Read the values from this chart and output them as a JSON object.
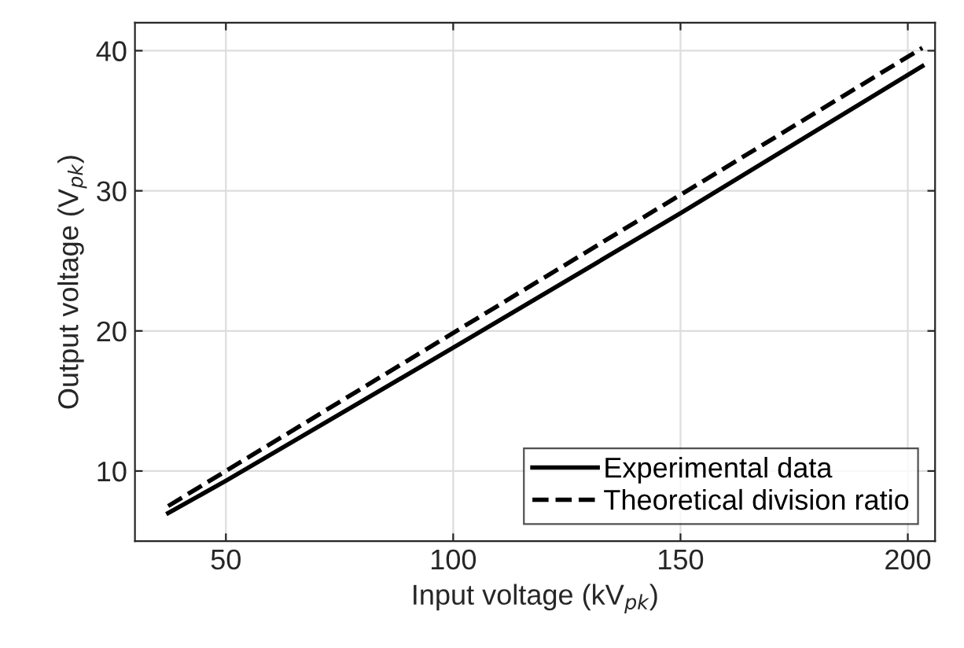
{
  "chart_data": {
    "type": "line",
    "xlabel": "Input voltage (kV$_{pk}$)",
    "ylabel": "Output voltage (V$_{pk}$)",
    "xlim": [
      30,
      206
    ],
    "ylim": [
      5,
      42
    ],
    "xticks": [
      50,
      100,
      150,
      200
    ],
    "yticks": [
      10,
      20,
      30,
      40
    ],
    "grid": true,
    "legend": "bottom right",
    "series": [
      {
        "name": "Experimental data",
        "color": "#000000",
        "line_style": "solid",
        "x": [
          37.3,
          50,
          100,
          150,
          203.2
        ],
        "values": [
          7.0,
          9.3,
          18.8,
          28.4,
          38.9
        ]
      },
      {
        "name": "Theoretical division ratio",
        "color": "#000000",
        "line_style": "dashed",
        "x": [
          37.3,
          203.2
        ],
        "values": [
          7.5,
          40.2
        ]
      }
    ]
  }
}
